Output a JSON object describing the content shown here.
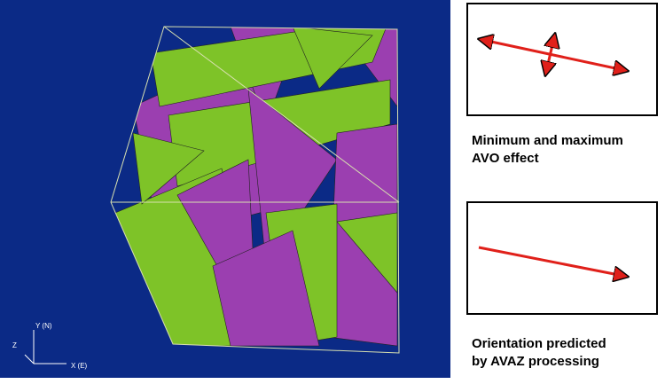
{
  "axes": {
    "y": "Y (N)",
    "z": "Z",
    "x": "X (E)"
  },
  "panels": [
    {
      "caption": [
        "Minimum and maximum",
        "AVO effect"
      ]
    },
    {
      "caption": [
        "Orientation predicted",
        "by AVAZ processing"
      ]
    }
  ]
}
